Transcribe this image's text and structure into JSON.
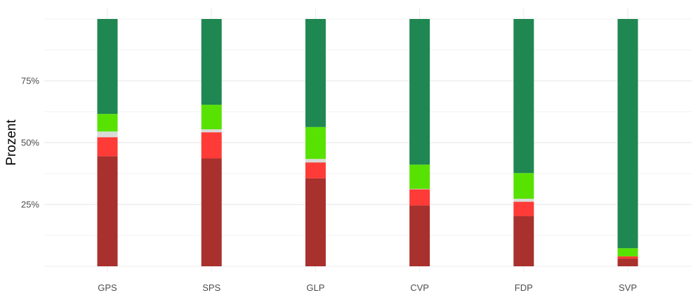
{
  "chart_data": {
    "type": "bar",
    "stacked": true,
    "ylabel": "Prozent",
    "xlabel": "",
    "ylim": [
      0,
      100
    ],
    "y_ticks": [
      25,
      50,
      75
    ],
    "y_tick_labels": [
      "25%",
      "50%",
      "75%"
    ],
    "y_minor_gridlines": [
      12.5,
      37.5,
      62.5,
      87.5,
      100
    ],
    "grid": true,
    "legend": "none",
    "categories": [
      "GPS",
      "SPS",
      "GLP",
      "CVP",
      "FDP",
      "SVP"
    ],
    "series": [
      {
        "color": "#a8302d",
        "values": [
          44.5,
          43.6,
          35.6,
          24.6,
          20.3,
          3.1
        ]
      },
      {
        "color": "#fe3b36",
        "values": [
          7.7,
          10.6,
          6.4,
          6.5,
          5.8,
          0.9
        ]
      },
      {
        "color": "#d8dad8",
        "values": [
          2.3,
          1.2,
          1.4,
          0.2,
          1.2,
          0.0
        ]
      },
      {
        "color": "#58e201",
        "values": [
          7.1,
          9.9,
          12.9,
          9.8,
          10.4,
          3.3
        ]
      },
      {
        "color": "#1f8751",
        "values": [
          38.4,
          34.7,
          43.7,
          58.9,
          62.3,
          92.7
        ]
      }
    ]
  }
}
